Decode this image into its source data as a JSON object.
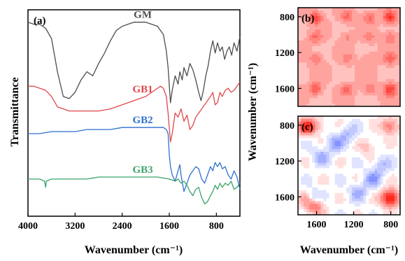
{
  "colors": {
    "GM": "#4d4d4d",
    "GB1": "#e0474c",
    "GB2": "#2f6fd0",
    "GB3": "#3aa36a",
    "heat_red": "#f03a2e",
    "heat_blue": "#2b3fd8"
  },
  "chart_data": [
    {
      "panel": "(a)",
      "type": "line",
      "xlabel": "Wavenumber (cm⁻¹)",
      "ylabel": "Transmittance",
      "xlim": [
        4000,
        400
      ],
      "x_reversed": true,
      "xticks": [
        4000,
        3200,
        2400,
        1600,
        800
      ],
      "xtick_labels": [
        "4000",
        "3200",
        "2400",
        "1600",
        "800"
      ],
      "series": [
        {
          "name": "GM",
          "color": "#4d4d4d",
          "x": [
            4000,
            3900,
            3800,
            3700,
            3600,
            3500,
            3400,
            3300,
            3200,
            3100,
            3000,
            2900,
            2800,
            2700,
            2600,
            2500,
            2400,
            2300,
            2200,
            2100,
            2000,
            1900,
            1800,
            1700,
            1650,
            1620,
            1580,
            1550,
            1500,
            1450,
            1420,
            1380,
            1350,
            1300,
            1250,
            1200,
            1150,
            1100,
            1060,
            1020,
            980,
            940,
            900,
            860,
            820,
            780,
            740,
            700,
            660,
            620,
            580,
            540,
            500,
            450,
            400
          ],
          "y": [
            0.94,
            0.93,
            0.93,
            0.91,
            0.86,
            0.7,
            0.58,
            0.57,
            0.6,
            0.66,
            0.7,
            0.68,
            0.74,
            0.79,
            0.85,
            0.9,
            0.92,
            0.93,
            0.94,
            0.94,
            0.94,
            0.93,
            0.92,
            0.88,
            0.8,
            0.72,
            0.55,
            0.61,
            0.68,
            0.64,
            0.7,
            0.66,
            0.72,
            0.68,
            0.74,
            0.71,
            0.66,
            0.6,
            0.56,
            0.61,
            0.68,
            0.73,
            0.8,
            0.85,
            0.79,
            0.84,
            0.8,
            0.82,
            0.76,
            0.8,
            0.82,
            0.78,
            0.84,
            0.8,
            0.87
          ]
        },
        {
          "name": "GB1",
          "color": "#e0474c",
          "x": [
            4000,
            3900,
            3800,
            3700,
            3600,
            3500,
            3400,
            3300,
            3200,
            3100,
            3000,
            2800,
            2600,
            2400,
            2200,
            2000,
            1900,
            1800,
            1750,
            1700,
            1650,
            1620,
            1580,
            1550,
            1500,
            1450,
            1400,
            1350,
            1300,
            1250,
            1200,
            1150,
            1100,
            1050,
            1000,
            950,
            900,
            860,
            820,
            780,
            740,
            700,
            650,
            600,
            550,
            500,
            450,
            400
          ],
          "y": [
            0.63,
            0.63,
            0.62,
            0.61,
            0.58,
            0.53,
            0.52,
            0.51,
            0.51,
            0.51,
            0.51,
            0.51,
            0.52,
            0.54,
            0.56,
            0.58,
            0.6,
            0.62,
            0.63,
            0.62,
            0.58,
            0.5,
            0.36,
            0.4,
            0.5,
            0.48,
            0.52,
            0.46,
            0.49,
            0.42,
            0.44,
            0.48,
            0.5,
            0.52,
            0.54,
            0.56,
            0.58,
            0.6,
            0.54,
            0.55,
            0.6,
            0.58,
            0.61,
            0.62,
            0.6,
            0.61,
            0.63,
            0.65
          ]
        },
        {
          "name": "GB2",
          "color": "#2f6fd0",
          "x": [
            4000,
            3800,
            3600,
            3400,
            3200,
            3000,
            2800,
            2600,
            2400,
            2200,
            2000,
            1800,
            1700,
            1650,
            1620,
            1600,
            1580,
            1550,
            1500,
            1450,
            1420,
            1400,
            1350,
            1300,
            1250,
            1200,
            1150,
            1100,
            1050,
            1000,
            950,
            900,
            860,
            820,
            780,
            740,
            700,
            650,
            600,
            550,
            500,
            450,
            400
          ],
          "y": [
            0.4,
            0.4,
            0.41,
            0.41,
            0.41,
            0.42,
            0.42,
            0.42,
            0.43,
            0.43,
            0.43,
            0.43,
            0.43,
            0.42,
            0.4,
            0.3,
            0.24,
            0.2,
            0.17,
            0.22,
            0.25,
            0.2,
            0.12,
            0.16,
            0.2,
            0.22,
            0.24,
            0.23,
            0.18,
            0.16,
            0.2,
            0.24,
            0.22,
            0.26,
            0.24,
            0.26,
            0.23,
            0.24,
            0.2,
            0.18,
            0.22,
            0.19,
            0.13
          ]
        },
        {
          "name": "GB3",
          "color": "#3aa36a",
          "x": [
            4000,
            3900,
            3800,
            3720,
            3700,
            3690,
            3600,
            3400,
            3200,
            3000,
            2800,
            2600,
            2400,
            2200,
            2000,
            1800,
            1600,
            1500,
            1450,
            1400,
            1350,
            1300,
            1250,
            1200,
            1150,
            1100,
            1050,
            1000,
            950,
            900,
            860,
            820,
            780,
            740,
            700,
            650,
            600,
            550,
            500,
            450,
            400
          ],
          "y": [
            0.18,
            0.18,
            0.18,
            0.17,
            0.14,
            0.17,
            0.18,
            0.18,
            0.18,
            0.18,
            0.19,
            0.19,
            0.19,
            0.19,
            0.19,
            0.19,
            0.18,
            0.17,
            0.18,
            0.16,
            0.17,
            0.15,
            0.12,
            0.1,
            0.13,
            0.14,
            0.09,
            0.06,
            0.07,
            0.1,
            0.12,
            0.15,
            0.13,
            0.16,
            0.14,
            0.16,
            0.15,
            0.17,
            0.13,
            0.14,
            0.16
          ]
        }
      ]
    },
    {
      "panel": "(b)",
      "type": "heatmap",
      "ylabel": "Wavenumber (cm⁻¹)",
      "range": [
        1800,
        700
      ],
      "ticks": [
        800,
        1200,
        1600
      ],
      "tick_labels": [
        "800",
        "1200",
        "1600"
      ],
      "colormap": "diverging blue-white-red",
      "peak_bands": [
        1610,
        1270,
        1030,
        810
      ],
      "peak_intensity": [
        0.85,
        0.55,
        0.55,
        0.95
      ],
      "base_intensity": 0.35
    },
    {
      "panel": "(c)",
      "type": "heatmap",
      "xlabel": "Wavenumber (cm⁻¹)",
      "range": [
        1800,
        700
      ],
      "ticks": [
        800,
        1200,
        1600
      ],
      "tick_labels": [
        "800",
        "1200",
        "1600"
      ],
      "colormap": "diverging blue-white-red",
      "features": [
        {
          "x": 1720,
          "y": 820,
          "value": 0.9
        },
        {
          "x": 1660,
          "y": 1620,
          "value": -0.95
        },
        {
          "x": 810,
          "y": 1620,
          "value": 0.95
        },
        {
          "x": 810,
          "y": 810,
          "value": 0.7
        },
        {
          "x": 1700,
          "y": 1620,
          "value": 0.8
        },
        {
          "x": 1620,
          "y": 1700,
          "value": 0.8
        },
        {
          "x": 1400,
          "y": 1000,
          "value": -0.45
        },
        {
          "x": 1000,
          "y": 1400,
          "value": -0.45
        },
        {
          "x": 1250,
          "y": 900,
          "value": -0.35
        },
        {
          "x": 900,
          "y": 1250,
          "value": -0.35
        },
        {
          "x": 1550,
          "y": 1150,
          "value": -0.4
        },
        {
          "x": 1150,
          "y": 1550,
          "value": -0.4
        },
        {
          "x": 1050,
          "y": 1050,
          "value": 0.3
        },
        {
          "x": 1600,
          "y": 800,
          "value": 0.35
        },
        {
          "x": 800,
          "y": 1600,
          "value": 0.35
        }
      ]
    }
  ]
}
